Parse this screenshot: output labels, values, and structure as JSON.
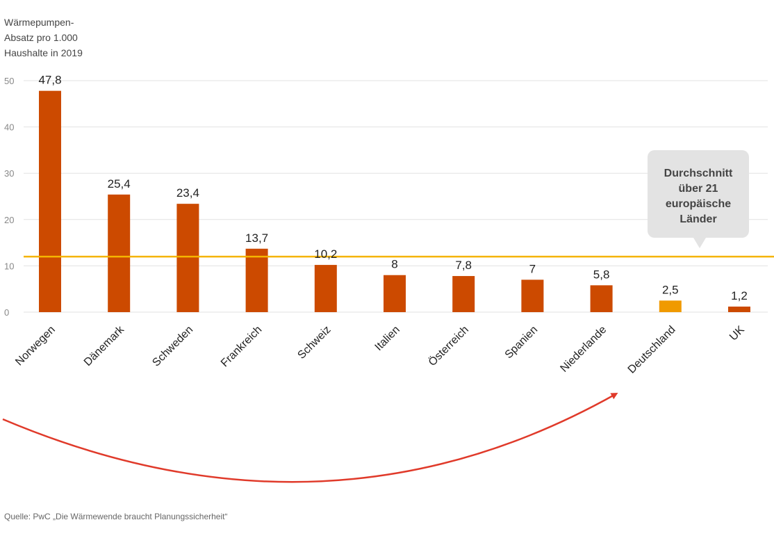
{
  "chart_data": {
    "type": "bar",
    "ylabel": [
      "Wärmepumpen-",
      "Absatz pro 1.000",
      "Haushalte in 2019"
    ],
    "ylim": [
      0,
      50
    ],
    "yticks": [
      0,
      10,
      20,
      30,
      40,
      50
    ],
    "grid": true,
    "categories": [
      "Norwegen",
      "Dänemark",
      "Schweden",
      "Frankreich",
      "Schweiz",
      "Italien",
      "Österreich",
      "Spanien",
      "Niederlande",
      "Deutschland",
      "UK"
    ],
    "values": [
      47.8,
      25.4,
      23.4,
      13.7,
      10.2,
      8,
      7.8,
      7,
      5.8,
      2.5,
      1.2
    ],
    "value_labels": [
      "47,8",
      "25,4",
      "23,4",
      "13,7",
      "10,2",
      "8",
      "7,8",
      "7",
      "5,8",
      "2,5",
      "1,2"
    ],
    "highlight_category": "Deutschland",
    "average": {
      "value": 12,
      "label_lines": [
        "Durchschnitt",
        "über 21",
        "europäische",
        "Länder"
      ]
    },
    "colors": {
      "bar": "#cc4a00",
      "highlight": "#f09a00",
      "average_line": "#f5b400",
      "grid": "#e2e2e2",
      "arrow": "#e03a2a",
      "callout_bg": "#e3e3e3"
    }
  },
  "source": "Quelle: PwC „Die Wärmewende braucht Planungssicherheit“"
}
